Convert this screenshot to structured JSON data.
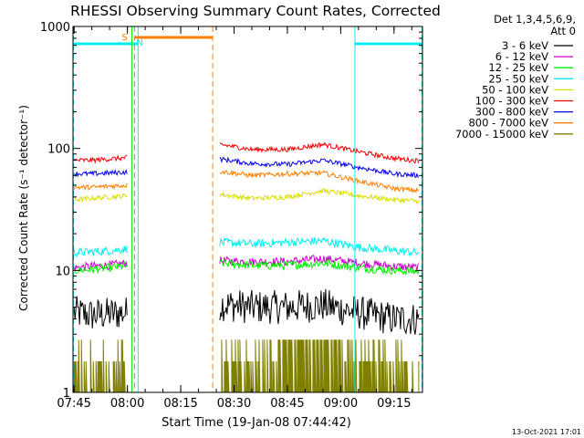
{
  "chart_data": {
    "type": "line",
    "title": "RHESSI Observing Summary Count Rates, Corrected",
    "xlabel": "Start Time (19-Jan-08 07:44:42)",
    "ylabel": "Corrected Count Rate (s⁻¹ detector⁻¹)",
    "yscale": "log",
    "ylim": [
      1,
      1000
    ],
    "xlim": [
      "07:44:42",
      "09:23:00"
    ],
    "xticks": [
      "07:45",
      "08:00",
      "08:15",
      "08:30",
      "08:45",
      "09:00",
      "09:15"
    ],
    "yticks": [
      "1",
      "10",
      "100",
      "1000"
    ],
    "footer_date": "13-Oct-2021 17:01",
    "legend": {
      "header": [
        "Det 1,3,4,5,6,9,",
        "Att 0"
      ],
      "placement": "right"
    },
    "annotations": {
      "s_label": "S",
      "n_label": "N",
      "saa_interval": [
        "08:02",
        "08:24"
      ],
      "night_intervals": [
        [
          "07:44:42",
          "08:03"
        ],
        [
          "09:04",
          "09:23"
        ]
      ]
    },
    "series": [
      {
        "name": "3 - 6 keV",
        "color": "#000000",
        "segments": [
          {
            "x": [
              "07:45",
              "07:50",
              "07:55",
              "08:00"
            ],
            "y": [
              4.5,
              4.3,
              4.4,
              4.5
            ]
          },
          {
            "x": [
              "08:26",
              "08:35",
              "08:45",
              "08:55",
              "09:05",
              "09:15",
              "09:22"
            ],
            "y": [
              5.3,
              5.0,
              5.0,
              5.2,
              4.5,
              4.0,
              4.0
            ]
          }
        ]
      },
      {
        "name": "6 - 12 keV",
        "color": "#cc00cc",
        "segments": [
          {
            "x": [
              "07:45",
              "07:50",
              "07:55",
              "08:00"
            ],
            "y": [
              10.5,
              10.8,
              11.0,
              11.5
            ]
          },
          {
            "x": [
              "08:26",
              "08:35",
              "08:45",
              "08:55",
              "09:05",
              "09:15",
              "09:22"
            ],
            "y": [
              12.0,
              11.8,
              11.8,
              12.5,
              11.5,
              10.8,
              10.5
            ]
          }
        ]
      },
      {
        "name": "12 - 25 keV",
        "color": "#00ee00",
        "segments": [
          {
            "x": [
              "07:45",
              "07:50",
              "07:55",
              "08:00"
            ],
            "y": [
              10.0,
              10.2,
              10.5,
              11.0
            ]
          },
          {
            "x": [
              "08:26",
              "08:35",
              "08:45",
              "08:55",
              "09:05",
              "09:15",
              "09:22"
            ],
            "y": [
              11.5,
              11.0,
              11.0,
              11.5,
              10.5,
              10.0,
              9.8
            ]
          }
        ]
      },
      {
        "name": "25 - 50 keV",
        "color": "#00eeee",
        "segments": [
          {
            "x": [
              "07:45",
              "07:50",
              "07:55",
              "08:00"
            ],
            "y": [
              14.0,
              14.2,
              14.5,
              15.0
            ]
          },
          {
            "x": [
              "08:26",
              "08:35",
              "08:45",
              "08:55",
              "09:05",
              "09:15",
              "09:22"
            ],
            "y": [
              17.0,
              16.5,
              17.0,
              17.5,
              15.5,
              14.5,
              14.0
            ]
          }
        ]
      },
      {
        "name": "50 - 100 keV",
        "color": "#dddd00",
        "segments": [
          {
            "x": [
              "07:45",
              "07:50",
              "07:55",
              "08:00"
            ],
            "y": [
              38,
              39,
              40,
              41
            ]
          },
          {
            "x": [
              "08:26",
              "08:35",
              "08:45",
              "08:55",
              "09:05",
              "09:15",
              "09:22"
            ],
            "y": [
              42,
              39,
              40,
              45,
              41,
              38,
              37
            ]
          }
        ]
      },
      {
        "name": "100 - 300 keV",
        "color": "#ee0000",
        "segments": [
          {
            "x": [
              "07:45",
              "07:50",
              "07:55",
              "08:00"
            ],
            "y": [
              80,
              80,
              82,
              84
            ]
          },
          {
            "x": [
              "08:26",
              "08:35",
              "08:45",
              "08:55",
              "09:05",
              "09:15",
              "09:22"
            ],
            "y": [
              108,
              98,
              98,
              108,
              94,
              83,
              79
            ]
          }
        ]
      },
      {
        "name": "300 - 800 keV",
        "color": "#0000ee",
        "segments": [
          {
            "x": [
              "07:45",
              "07:50",
              "07:55",
              "08:00"
            ],
            "y": [
              62,
              62,
              63,
              64
            ]
          },
          {
            "x": [
              "08:26",
              "08:35",
              "08:45",
              "08:55",
              "09:05",
              "09:15",
              "09:22"
            ],
            "y": [
              82,
              75,
              74,
              80,
              70,
              62,
              60
            ]
          }
        ]
      },
      {
        "name": "800 - 7000 keV",
        "color": "#ff7f00",
        "segments": [
          {
            "x": [
              "07:45",
              "07:50",
              "07:55",
              "08:00"
            ],
            "y": [
              48,
              48,
              49,
              50
            ]
          },
          {
            "x": [
              "08:26",
              "08:35",
              "08:45",
              "08:55",
              "09:05",
              "09:15",
              "09:22"
            ],
            "y": [
              65,
              60,
              62,
              63,
              54,
              47,
              45
            ]
          }
        ]
      },
      {
        "name": "7000 - 15000 keV",
        "color": "#808000",
        "segments": [
          {
            "x": [
              "07:45",
              "07:50",
              "07:55",
              "08:00"
            ],
            "y": [
              1.8,
              1.8,
              1.8,
              1.8
            ]
          },
          {
            "x": [
              "08:26",
              "08:35",
              "08:45",
              "08:55",
              "09:05",
              "09:15",
              "09:22"
            ],
            "y": [
              1.8,
              1.8,
              2.2,
              2.6,
              1.8,
              1.8,
              1.8
            ]
          }
        ]
      }
    ]
  }
}
